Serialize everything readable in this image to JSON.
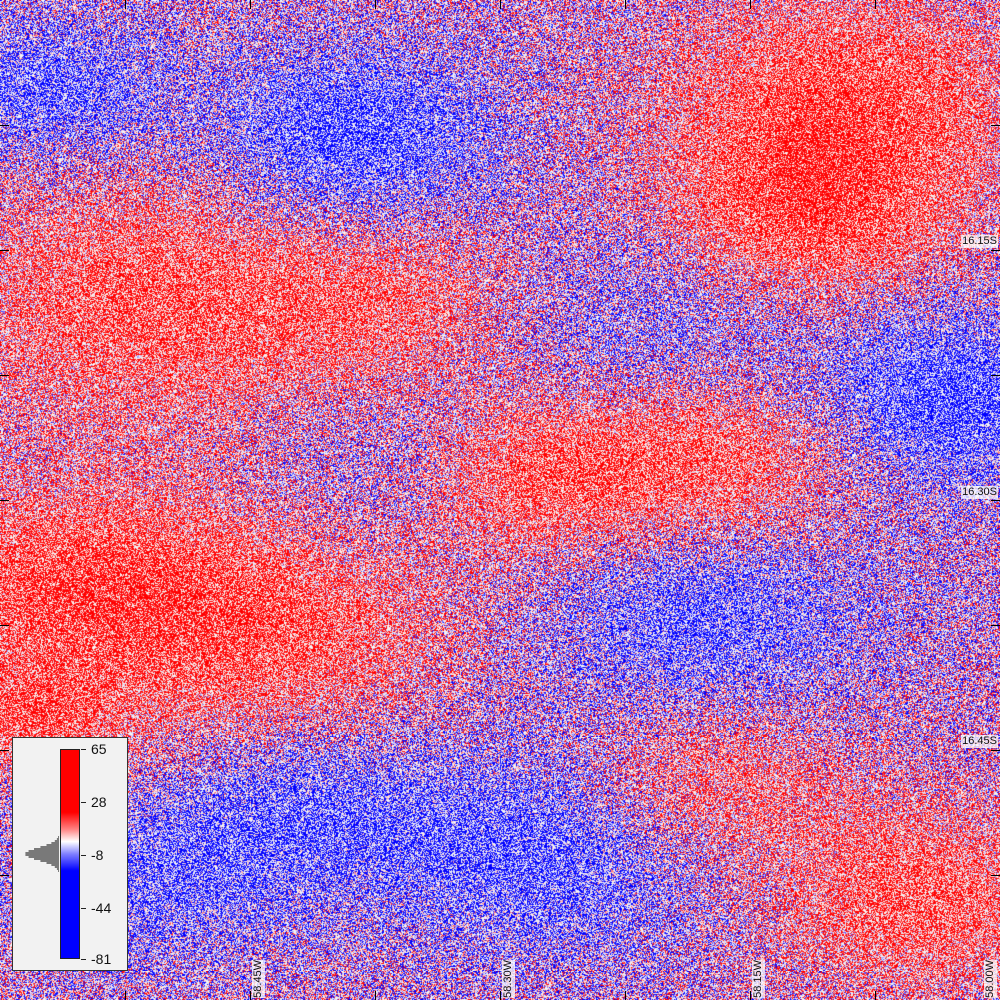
{
  "map": {
    "colors": {
      "positive": "#ff0000",
      "neutral": "#ffffff",
      "negative": "#0000ff"
    },
    "latitude_labels": [
      "16.15S",
      "16.30S",
      "16.45S"
    ],
    "longitude_labels": [
      "58.45W",
      "58.30W",
      "58.15W",
      "58.00W"
    ]
  },
  "legend": {
    "ticks": [
      "65",
      "28",
      "-8",
      "-44",
      "-81"
    ],
    "value_max": 65,
    "value_min": -81,
    "histogram_peak": -8
  }
}
